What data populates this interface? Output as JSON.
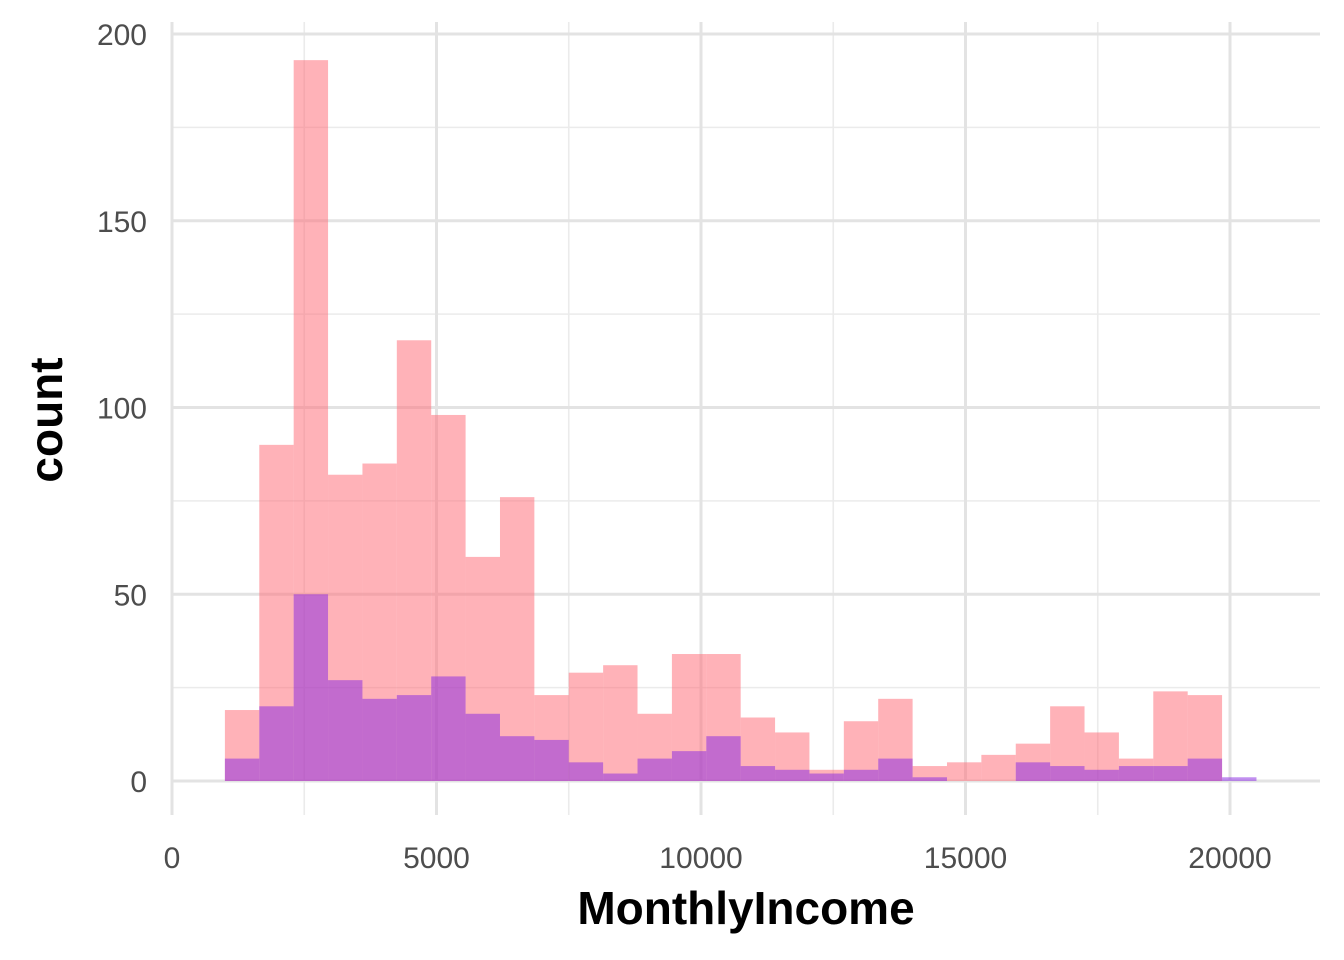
{
  "chart_data": {
    "type": "bar",
    "subtype": "overlapping-histogram",
    "xlabel": "MonthlyIncome",
    "ylabel": "count",
    "xlim": [
      0,
      21500
    ],
    "ylim": [
      0,
      200
    ],
    "x_ticks": [
      0,
      5000,
      10000,
      15000,
      20000
    ],
    "y_ticks": [
      0,
      50,
      100,
      150,
      200
    ],
    "grid": true,
    "bin_width": 650,
    "bin_starts": [
      1000,
      1650,
      2300,
      2950,
      3600,
      4250,
      4900,
      5550,
      6200,
      6850,
      7500,
      8150,
      8800,
      9450,
      10100,
      10750,
      11400,
      12050,
      12700,
      13350,
      14000,
      14650,
      15300,
      15950,
      16600,
      17250,
      17900,
      18550,
      19200,
      19850
    ],
    "series": [
      {
        "color": "#F8766D",
        "fill": "rgba(255,108,118,0.52)",
        "values": [
          19,
          90,
          193,
          82,
          85,
          118,
          98,
          60,
          76,
          23,
          29,
          31,
          18,
          34,
          34,
          17,
          13,
          3,
          16,
          22,
          4,
          5,
          7,
          10,
          20,
          13,
          6,
          24,
          23,
          0
        ]
      },
      {
        "color": "#8A2BE2",
        "fill": "rgba(138,43,226,0.52)",
        "values": [
          6,
          20,
          50,
          27,
          22,
          23,
          28,
          18,
          12,
          11,
          5,
          2,
          6,
          8,
          12,
          4,
          3,
          2,
          3,
          6,
          1,
          0,
          0,
          5,
          4,
          3,
          4,
          4,
          6,
          1
        ]
      }
    ]
  }
}
